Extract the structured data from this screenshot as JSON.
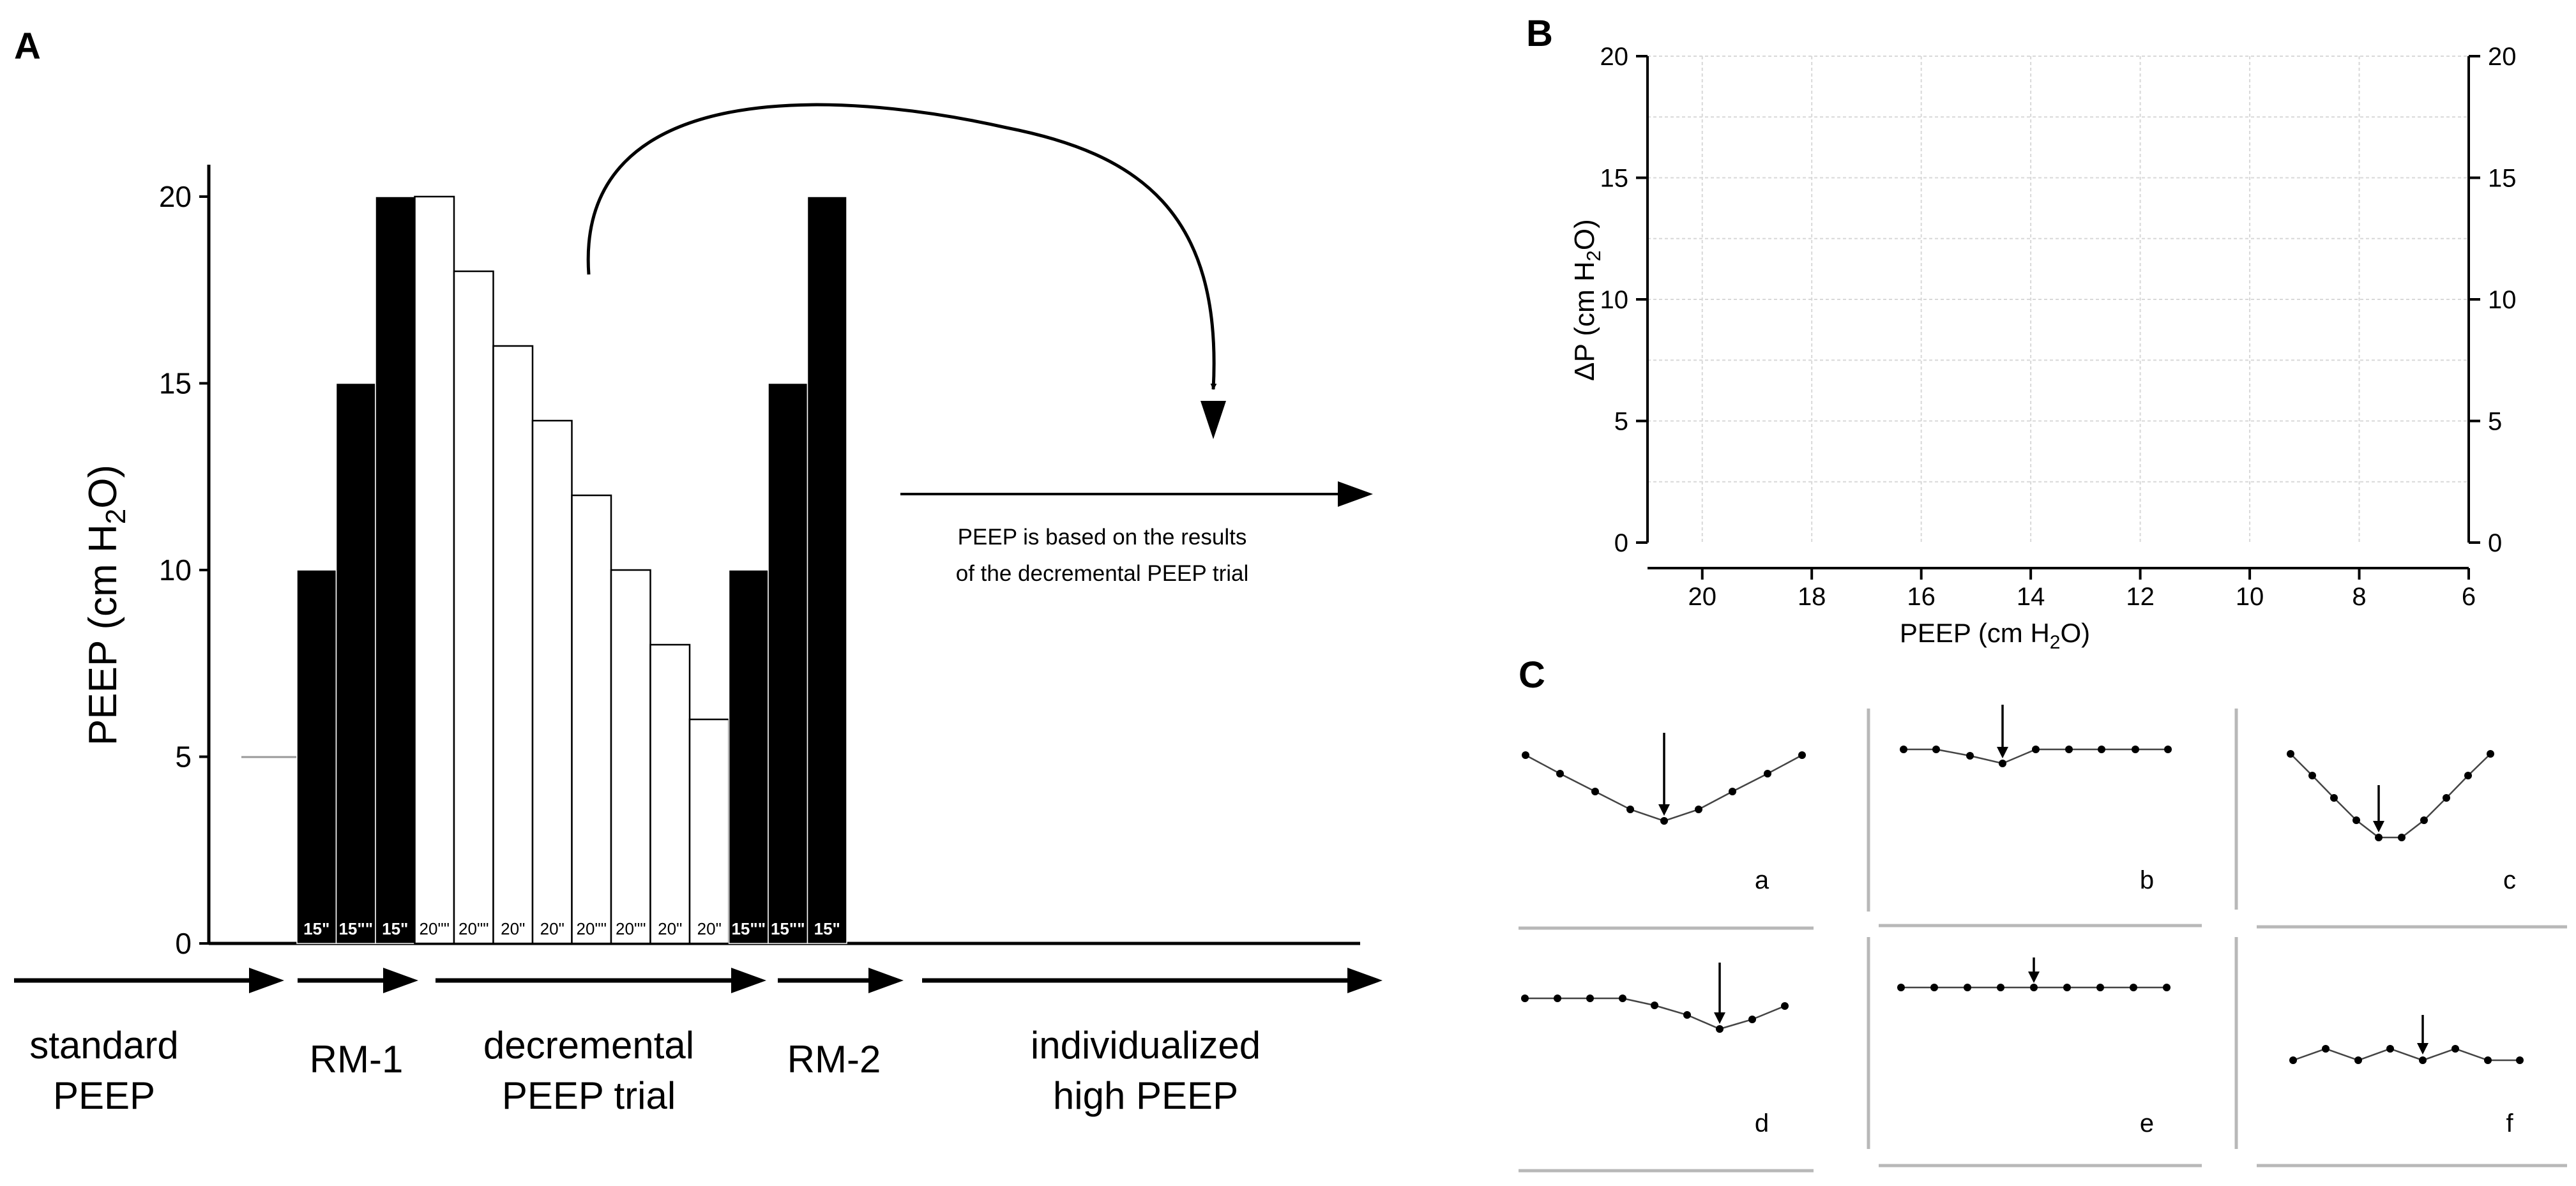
{
  "panels": {
    "a": {
      "letter": "A"
    },
    "b": {
      "letter": "B"
    },
    "c": {
      "letter": "C"
    }
  },
  "panel_a": {
    "y_axis": {
      "label": "PEEP (cm H",
      "label_sub": "2",
      "label_tail": "O)",
      "ticks": [
        0,
        5,
        10,
        15,
        20
      ]
    },
    "baseline_level": 5,
    "bars": [
      {
        "value": 10,
        "fill": "black",
        "duration": "15\""
      },
      {
        "value": 15,
        "fill": "black",
        "duration": "15\"\""
      },
      {
        "value": 20,
        "fill": "black",
        "duration": "15\""
      },
      {
        "value": 20,
        "fill": "white",
        "duration": "20\"\""
      },
      {
        "value": 18,
        "fill": "white",
        "duration": "20\"\""
      },
      {
        "value": 16,
        "fill": "white",
        "duration": "20\""
      },
      {
        "value": 14,
        "fill": "white",
        "duration": "20\""
      },
      {
        "value": 12,
        "fill": "white",
        "duration": "20\"\""
      },
      {
        "value": 10,
        "fill": "white",
        "duration": "20\"\""
      },
      {
        "value": 8,
        "fill": "white",
        "duration": "20\""
      },
      {
        "value": 6,
        "fill": "white",
        "duration": "20\""
      },
      {
        "value": 10,
        "fill": "black",
        "duration": "15\"\""
      },
      {
        "value": 15,
        "fill": "black",
        "duration": "15\"\""
      },
      {
        "value": 20,
        "fill": "black",
        "duration": "15\""
      }
    ],
    "annotation": [
      "PEEP is based on the results",
      "of the decremental PEEP trial"
    ],
    "phases": [
      {
        "lines": [
          "standard",
          "PEEP"
        ]
      },
      {
        "lines": [
          "RM-1"
        ]
      },
      {
        "lines": [
          "decremental",
          "PEEP trial"
        ]
      },
      {
        "lines": [
          "RM-2"
        ]
      },
      {
        "lines": [
          "individualized",
          "high PEEP"
        ]
      }
    ]
  },
  "panel_b": {
    "y_label": {
      "prefix": "ΔP (cm H",
      "sub": "2",
      "suffix": "O)"
    },
    "x_label": {
      "prefix": "PEEP (cm H",
      "sub": "2",
      "suffix": "O)"
    },
    "y_ticks": [
      0,
      5,
      10,
      15,
      20
    ],
    "x_ticks": [
      20,
      18,
      16,
      14,
      12,
      10,
      8,
      6
    ]
  },
  "panel_c": {
    "patterns": [
      {
        "letter": "a"
      },
      {
        "letter": "b"
      },
      {
        "letter": "c"
      },
      {
        "letter": "d"
      },
      {
        "letter": "e"
      },
      {
        "letter": "f"
      }
    ]
  },
  "chart_data": [
    {
      "type": "bar",
      "ylabel": "PEEP (cm H2O)",
      "ylim": [
        0,
        20
      ],
      "categories": [
        "15\"",
        "15\"\"",
        "15\"",
        "20\"\"",
        "20\"\"",
        "20\"",
        "20\"",
        "20\"\"",
        "20\"\"",
        "20\"",
        "20\"",
        "15\"\"",
        "15\"\"",
        "15\""
      ],
      "values": [
        10,
        15,
        20,
        20,
        18,
        16,
        14,
        12,
        10,
        8,
        6,
        10,
        15,
        20
      ]
    },
    {
      "type": "line",
      "xlabel": "PEEP (cm H2O)",
      "ylabel": "ΔP (cm H2O)",
      "xlim": [
        21,
        6
      ],
      "ylim": [
        0,
        20
      ],
      "grid": true,
      "series": []
    }
  ]
}
